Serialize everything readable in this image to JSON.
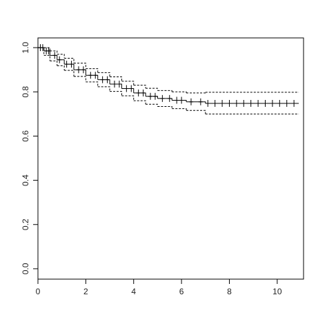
{
  "chart_data": {
    "type": "step",
    "xlim": [
      0,
      11.1
    ],
    "xticks": [
      0,
      2,
      4,
      6,
      8,
      10
    ],
    "ylim": [
      -0.047,
      1.044
    ],
    "yticks": [
      {
        "value": 0,
        "label": "0.0"
      },
      0.2,
      0.4,
      0.6,
      0.8,
      {
        "value": 1,
        "label": "1.0"
      }
    ],
    "x": [
      0,
      0.25,
      0.5,
      0.8,
      1.1,
      1.5,
      2,
      2.5,
      3,
      3.5,
      4,
      4.5,
      5,
      5.6,
      6.2,
      7,
      10.9
    ],
    "series": [
      {
        "color": "#000000",
        "dashed": false,
        "values": [
          1,
          0.985,
          0.965,
          0.945,
          0.925,
          0.9,
          0.875,
          0.855,
          0.835,
          0.815,
          0.795,
          0.78,
          0.77,
          0.762,
          0.755,
          0.748,
          0.748
        ]
      },
      {
        "color": "#000000",
        "dashed": true,
        "values": [
          1,
          1,
          0.985,
          0.97,
          0.952,
          0.93,
          0.905,
          0.887,
          0.868,
          0.848,
          0.83,
          0.816,
          0.806,
          0.8,
          0.795,
          0.798,
          0.798
        ]
      },
      {
        "color": "#000000",
        "dashed": true,
        "values": [
          1,
          0.965,
          0.94,
          0.918,
          0.897,
          0.87,
          0.845,
          0.823,
          0.802,
          0.782,
          0.76,
          0.744,
          0.734,
          0.724,
          0.716,
          0.7,
          0.7
        ]
      }
    ],
    "censored": {
      "color": "#000000",
      "x": [
        0.1,
        0.2,
        0.35,
        0.45,
        0.7,
        0.9,
        1.2,
        1.4,
        1.7,
        1.9,
        2.2,
        2.4,
        2.7,
        2.9,
        3.2,
        3.4,
        3.7,
        3.9,
        4.2,
        4.4,
        4.7,
        4.9,
        5.2,
        5.5,
        5.8,
        6.0,
        6.4,
        6.8,
        7.1,
        7.4,
        7.7,
        8.0,
        8.3,
        8.6,
        8.9,
        9.2,
        9.5,
        9.8,
        10.1,
        10.4,
        10.7
      ],
      "values": [
        1,
        1,
        0.985,
        0.985,
        0.965,
        0.945,
        0.925,
        0.925,
        0.9,
        0.9,
        0.875,
        0.875,
        0.855,
        0.855,
        0.835,
        0.835,
        0.815,
        0.815,
        0.795,
        0.795,
        0.78,
        0.78,
        0.77,
        0.77,
        0.762,
        0.762,
        0.755,
        0.755,
        0.748,
        0.748,
        0.748,
        0.748,
        0.748,
        0.748,
        0.748,
        0.748,
        0.748,
        0.748,
        0.748,
        0.748,
        0.748
      ]
    }
  }
}
